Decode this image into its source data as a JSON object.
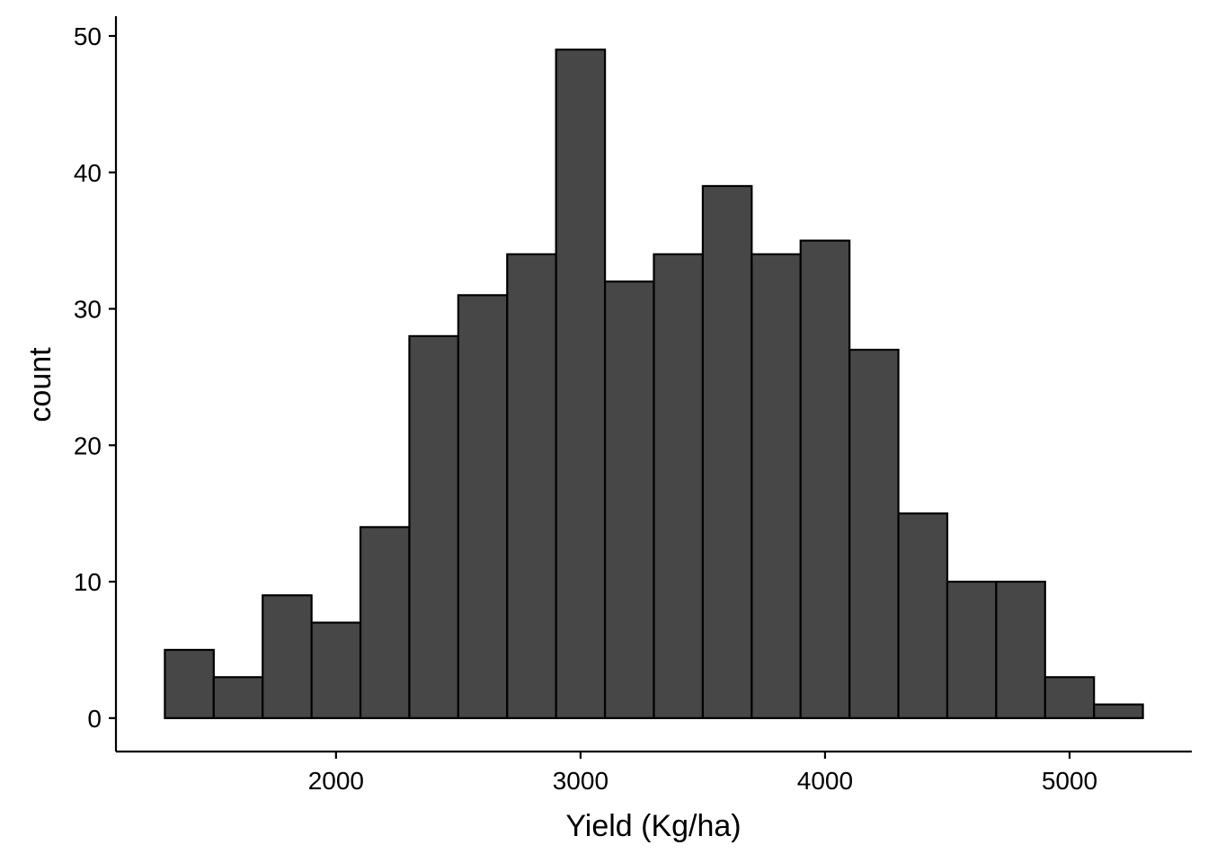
{
  "chart_data": {
    "type": "bar",
    "xlabel": "Yield (Kg/ha)",
    "ylabel": "count",
    "bin_width": 200,
    "bins": [
      {
        "start": 1300,
        "end": 1500,
        "count": 5
      },
      {
        "start": 1500,
        "end": 1700,
        "count": 3
      },
      {
        "start": 1700,
        "end": 1900,
        "count": 9
      },
      {
        "start": 1900,
        "end": 2100,
        "count": 7
      },
      {
        "start": 2100,
        "end": 2300,
        "count": 14
      },
      {
        "start": 2300,
        "end": 2500,
        "count": 28
      },
      {
        "start": 2500,
        "end": 2700,
        "count": 31
      },
      {
        "start": 2700,
        "end": 2900,
        "count": 34
      },
      {
        "start": 2900,
        "end": 3100,
        "count": 49
      },
      {
        "start": 3100,
        "end": 3300,
        "count": 32
      },
      {
        "start": 3300,
        "end": 3500,
        "count": 34
      },
      {
        "start": 3500,
        "end": 3700,
        "count": 39
      },
      {
        "start": 3700,
        "end": 3900,
        "count": 34
      },
      {
        "start": 3900,
        "end": 4100,
        "count": 35
      },
      {
        "start": 4100,
        "end": 4300,
        "count": 27
      },
      {
        "start": 4300,
        "end": 4500,
        "count": 15
      },
      {
        "start": 4500,
        "end": 4700,
        "count": 10
      },
      {
        "start": 4700,
        "end": 4900,
        "count": 10
      },
      {
        "start": 4900,
        "end": 5100,
        "count": 3
      },
      {
        "start": 5100,
        "end": 5300,
        "count": 1
      }
    ],
    "xlim": [
      1100,
      5500
    ],
    "ylim": [
      -2.45,
      51.45
    ],
    "xticks": [
      2000,
      3000,
      4000,
      5000
    ],
    "yticks": [
      0,
      10,
      20,
      30,
      40,
      50
    ],
    "bar_fill": "#474747",
    "bar_stroke": "#000000",
    "grid": false,
    "legend": "none"
  }
}
